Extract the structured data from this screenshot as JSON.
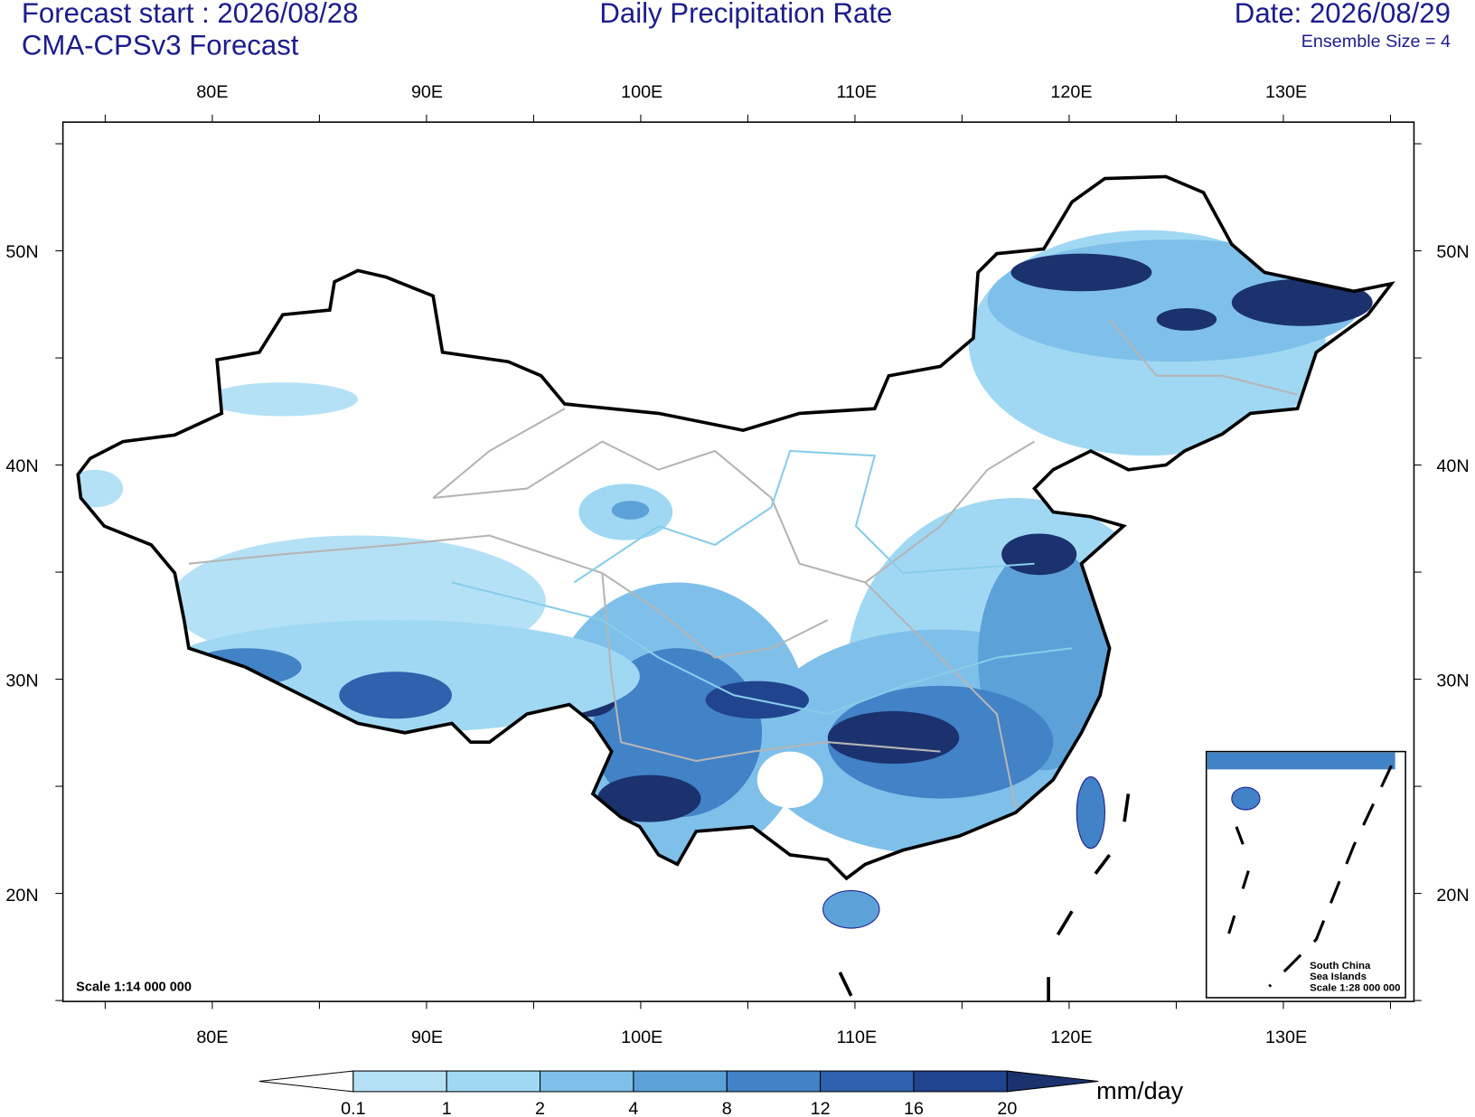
{
  "header": {
    "forecast_start": "Forecast start : 2026/08/28",
    "model": "CMA-CPSv3 Forecast",
    "title": "Daily Precipitation Rate",
    "date": "Date: 2026/08/29",
    "ensemble": "Ensemble Size = 4"
  },
  "map": {
    "lon_labels": [
      "80E",
      "90E",
      "100E",
      "110E",
      "120E",
      "130E"
    ],
    "lat_labels": [
      "50N",
      "40N",
      "30N",
      "20N"
    ],
    "scale": "Scale 1:14 000 000"
  },
  "inset": {
    "lines": [
      "South China",
      "Sea Islands",
      "Scale 1:28 000 000"
    ]
  },
  "colorbar": {
    "levels": [
      "0.1",
      "1",
      "2",
      "4",
      "8",
      "12",
      "16",
      "20"
    ],
    "colors": [
      "#ffffff",
      "#b4e1f6",
      "#a0d8f3",
      "#7fc0ea",
      "#5ca2d9",
      "#4282c6",
      "#2e62ad",
      "#21448f",
      "#1b326e"
    ],
    "unit": "mm/day"
  }
}
